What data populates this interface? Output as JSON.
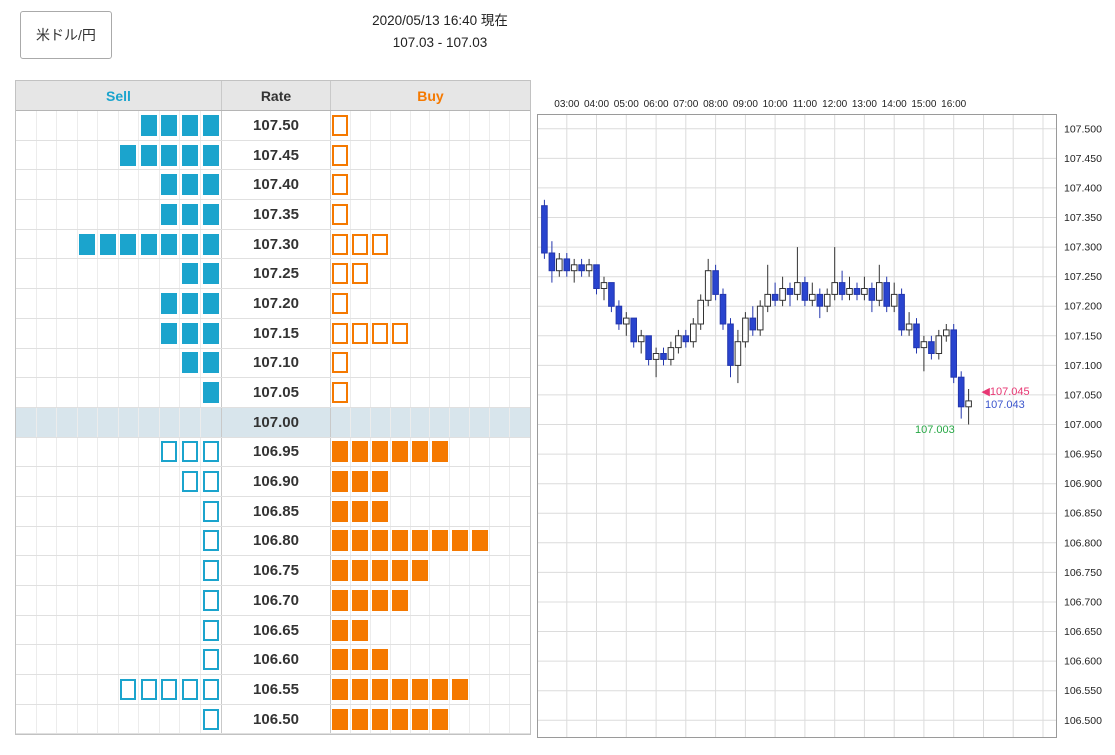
{
  "header": {
    "pair_label": "米ドル/円",
    "timestamp": "2020/05/13 16:40 現在",
    "bid_ask": "107.03 - 107.03"
  },
  "order_book": {
    "columns": {
      "sell": "Sell",
      "rate": "Rate",
      "buy": "Buy"
    },
    "grid_cells": 10,
    "colors": {
      "sell": "#1ba4cd",
      "buy": "#f57900",
      "highlight_row_bg": "#d8e5ec"
    },
    "rows": [
      {
        "rate": "107.50",
        "sell_filled": 4,
        "sell_outline": 0,
        "buy_filled": 0,
        "buy_outline": 1,
        "highlight": false
      },
      {
        "rate": "107.45",
        "sell_filled": 5,
        "sell_outline": 0,
        "buy_filled": 0,
        "buy_outline": 1,
        "highlight": false
      },
      {
        "rate": "107.40",
        "sell_filled": 3,
        "sell_outline": 0,
        "buy_filled": 0,
        "buy_outline": 1,
        "highlight": false
      },
      {
        "rate": "107.35",
        "sell_filled": 3,
        "sell_outline": 0,
        "buy_filled": 0,
        "buy_outline": 1,
        "highlight": false
      },
      {
        "rate": "107.30",
        "sell_filled": 7,
        "sell_outline": 0,
        "buy_filled": 0,
        "buy_outline": 3,
        "highlight": false
      },
      {
        "rate": "107.25",
        "sell_filled": 2,
        "sell_outline": 0,
        "buy_filled": 0,
        "buy_outline": 2,
        "highlight": false
      },
      {
        "rate": "107.20",
        "sell_filled": 3,
        "sell_outline": 0,
        "buy_filled": 0,
        "buy_outline": 1,
        "highlight": false
      },
      {
        "rate": "107.15",
        "sell_filled": 3,
        "sell_outline": 0,
        "buy_filled": 0,
        "buy_outline": 4,
        "highlight": false
      },
      {
        "rate": "107.10",
        "sell_filled": 2,
        "sell_outline": 0,
        "buy_filled": 0,
        "buy_outline": 1,
        "highlight": false
      },
      {
        "rate": "107.05",
        "sell_filled": 1,
        "sell_outline": 0,
        "buy_filled": 0,
        "buy_outline": 1,
        "highlight": false
      },
      {
        "rate": "107.00",
        "sell_filled": 0,
        "sell_outline": 0,
        "buy_filled": 0,
        "buy_outline": 0,
        "highlight": true
      },
      {
        "rate": "106.95",
        "sell_filled": 0,
        "sell_outline": 3,
        "buy_filled": 6,
        "buy_outline": 0,
        "highlight": false
      },
      {
        "rate": "106.90",
        "sell_filled": 0,
        "sell_outline": 2,
        "buy_filled": 3,
        "buy_outline": 0,
        "highlight": false
      },
      {
        "rate": "106.85",
        "sell_filled": 0,
        "sell_outline": 1,
        "buy_filled": 3,
        "buy_outline": 0,
        "highlight": false
      },
      {
        "rate": "106.80",
        "sell_filled": 0,
        "sell_outline": 1,
        "buy_filled": 8,
        "buy_outline": 0,
        "highlight": false
      },
      {
        "rate": "106.75",
        "sell_filled": 0,
        "sell_outline": 1,
        "buy_filled": 5,
        "buy_outline": 0,
        "highlight": false
      },
      {
        "rate": "106.70",
        "sell_filled": 0,
        "sell_outline": 1,
        "buy_filled": 4,
        "buy_outline": 0,
        "highlight": false
      },
      {
        "rate": "106.65",
        "sell_filled": 0,
        "sell_outline": 1,
        "buy_filled": 2,
        "buy_outline": 0,
        "highlight": false
      },
      {
        "rate": "106.60",
        "sell_filled": 0,
        "sell_outline": 1,
        "buy_filled": 3,
        "buy_outline": 0,
        "highlight": false
      },
      {
        "rate": "106.55",
        "sell_filled": 0,
        "sell_outline": 5,
        "buy_filled": 7,
        "buy_outline": 0,
        "highlight": false
      },
      {
        "rate": "106.50",
        "sell_filled": 0,
        "sell_outline": 1,
        "buy_filled": 6,
        "buy_outline": 0,
        "highlight": false
      }
    ]
  },
  "chart_data": {
    "type": "candlestick",
    "title": "",
    "time_labels": [
      "03:00",
      "04:00",
      "05:00",
      "06:00",
      "07:00",
      "08:00",
      "09:00",
      "10:00",
      "11:00",
      "12:00",
      "13:00",
      "14:00",
      "15:00",
      "16:00"
    ],
    "first_label_hour": 3,
    "x_range_hours": [
      2,
      19.47
    ],
    "ylim": [
      106.47,
      107.525
    ],
    "y_ticks": [
      107.5,
      107.45,
      107.4,
      107.35,
      107.3,
      107.25,
      107.2,
      107.15,
      107.1,
      107.05,
      107.0,
      106.95,
      106.9,
      106.85,
      106.8,
      106.75,
      106.7,
      106.65,
      106.6,
      106.55,
      106.5
    ],
    "grid": true,
    "colors": {
      "up_fill": "#ffffff",
      "up_stroke": "#333333",
      "down_fill": "#2944cf",
      "down_stroke": "#2336ad",
      "grid": "#dcdcdc",
      "border": "#9a9a9a",
      "axis_text": "#222222"
    },
    "candles": [
      [
        2.25,
        107.37,
        107.38,
        107.28,
        107.29
      ],
      [
        2.5,
        107.29,
        107.31,
        107.24,
        107.26
      ],
      [
        2.75,
        107.26,
        107.29,
        107.25,
        107.28
      ],
      [
        3,
        107.28,
        107.29,
        107.25,
        107.26
      ],
      [
        3.25,
        107.26,
        107.28,
        107.24,
        107.27
      ],
      [
        3.5,
        107.27,
        107.28,
        107.25,
        107.26
      ],
      [
        3.75,
        107.26,
        107.28,
        107.25,
        107.27
      ],
      [
        4,
        107.27,
        107.27,
        107.22,
        107.23
      ],
      [
        4.25,
        107.23,
        107.25,
        107.21,
        107.24
      ],
      [
        4.5,
        107.24,
        107.24,
        107.19,
        107.2
      ],
      [
        4.75,
        107.2,
        107.21,
        107.16,
        107.17
      ],
      [
        5,
        107.17,
        107.19,
        107.15,
        107.18
      ],
      [
        5.25,
        107.18,
        107.18,
        107.13,
        107.14
      ],
      [
        5.5,
        107.14,
        107.16,
        107.12,
        107.15
      ],
      [
        5.75,
        107.15,
        107.15,
        107.1,
        107.11
      ],
      [
        6,
        107.11,
        107.13,
        107.08,
        107.12
      ],
      [
        6.25,
        107.12,
        107.13,
        107.1,
        107.11
      ],
      [
        6.5,
        107.11,
        107.14,
        107.1,
        107.13
      ],
      [
        6.75,
        107.13,
        107.16,
        107.12,
        107.15
      ],
      [
        7,
        107.15,
        107.16,
        107.13,
        107.14
      ],
      [
        7.25,
        107.14,
        107.18,
        107.13,
        107.17
      ],
      [
        7.5,
        107.17,
        107.22,
        107.16,
        107.21
      ],
      [
        7.75,
        107.21,
        107.28,
        107.2,
        107.26
      ],
      [
        8,
        107.26,
        107.27,
        107.21,
        107.22
      ],
      [
        8.25,
        107.22,
        107.23,
        107.16,
        107.17
      ],
      [
        8.5,
        107.17,
        107.18,
        107.08,
        107.1
      ],
      [
        8.75,
        107.1,
        107.16,
        107.07,
        107.14
      ],
      [
        9,
        107.14,
        107.19,
        107.13,
        107.18
      ],
      [
        9.25,
        107.18,
        107.2,
        107.15,
        107.16
      ],
      [
        9.5,
        107.16,
        107.21,
        107.15,
        107.2
      ],
      [
        9.75,
        107.2,
        107.27,
        107.19,
        107.22
      ],
      [
        10,
        107.22,
        107.24,
        107.2,
        107.21
      ],
      [
        10.25,
        107.21,
        107.25,
        107.2,
        107.23
      ],
      [
        10.5,
        107.23,
        107.24,
        107.2,
        107.22
      ],
      [
        10.75,
        107.22,
        107.3,
        107.21,
        107.24
      ],
      [
        11,
        107.24,
        107.25,
        107.2,
        107.21
      ],
      [
        11.25,
        107.21,
        107.24,
        107.2,
        107.22
      ],
      [
        11.5,
        107.22,
        107.23,
        107.18,
        107.2
      ],
      [
        11.75,
        107.2,
        107.23,
        107.19,
        107.22
      ],
      [
        12,
        107.22,
        107.3,
        107.21,
        107.24
      ],
      [
        12.25,
        107.24,
        107.26,
        107.21,
        107.22
      ],
      [
        12.5,
        107.22,
        107.25,
        107.21,
        107.23
      ],
      [
        12.75,
        107.23,
        107.24,
        107.21,
        107.22
      ],
      [
        13,
        107.22,
        107.25,
        107.21,
        107.23
      ],
      [
        13.25,
        107.23,
        107.24,
        107.19,
        107.21
      ],
      [
        13.5,
        107.21,
        107.27,
        107.2,
        107.24
      ],
      [
        13.75,
        107.24,
        107.25,
        107.19,
        107.2
      ],
      [
        14,
        107.2,
        107.24,
        107.19,
        107.22
      ],
      [
        14.25,
        107.22,
        107.23,
        107.15,
        107.16
      ],
      [
        14.5,
        107.16,
        107.19,
        107.15,
        107.17
      ],
      [
        14.75,
        107.17,
        107.18,
        107.12,
        107.13
      ],
      [
        15,
        107.13,
        107.15,
        107.09,
        107.14
      ],
      [
        15.25,
        107.14,
        107.15,
        107.11,
        107.12
      ],
      [
        15.5,
        107.12,
        107.16,
        107.11,
        107.15
      ],
      [
        15.75,
        107.15,
        107.17,
        107.14,
        107.16
      ],
      [
        16,
        107.16,
        107.17,
        107.07,
        107.08
      ],
      [
        16.25,
        107.08,
        107.09,
        107.01,
        107.03
      ],
      [
        16.5,
        107.03,
        107.06,
        107.0,
        107.04
      ]
    ],
    "annotations": [
      {
        "text": "107.045",
        "prefix": "◀",
        "color": "#e73672",
        "hour": 16.93,
        "price": 107.056
      },
      {
        "text": "107.043",
        "prefix": "",
        "color": "#3b55cc",
        "hour": 17.05,
        "price": 107.034
      },
      {
        "text": "107.003",
        "prefix": "",
        "color": "#27a845",
        "hour": 14.7,
        "price": 106.992
      }
    ]
  }
}
